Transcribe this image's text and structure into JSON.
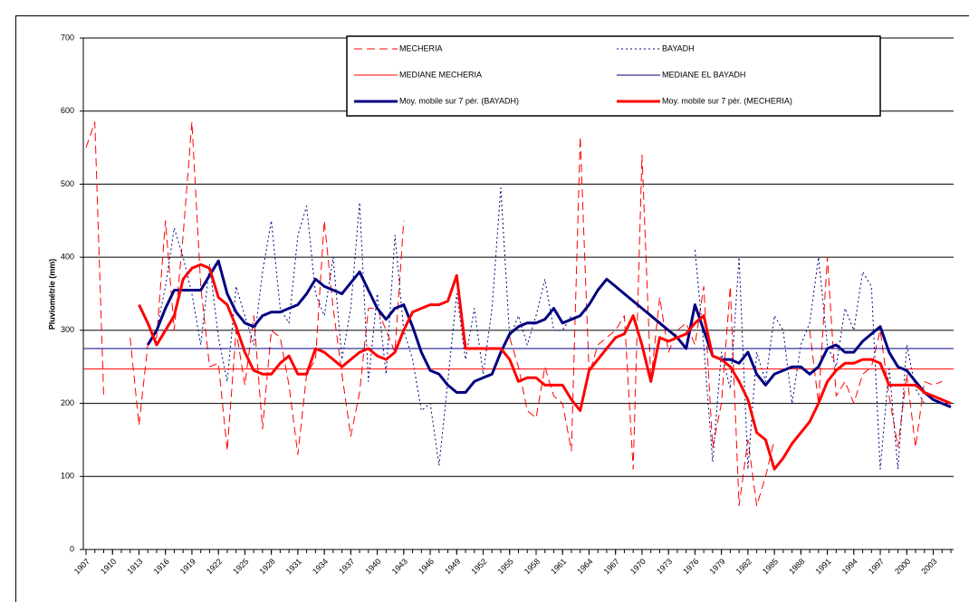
{
  "chart_data": {
    "type": "line",
    "ylabel": "Pluviométrie (mm)",
    "x": [
      1907,
      1908,
      1909,
      1910,
      1911,
      1912,
      1913,
      1914,
      1915,
      1916,
      1917,
      1918,
      1919,
      1920,
      1921,
      1922,
      1923,
      1924,
      1925,
      1926,
      1927,
      1928,
      1929,
      1930,
      1931,
      1932,
      1933,
      1934,
      1935,
      1936,
      1937,
      1938,
      1939,
      1940,
      1941,
      1942,
      1943,
      1944,
      1945,
      1946,
      1947,
      1948,
      1949,
      1950,
      1951,
      1952,
      1953,
      1954,
      1955,
      1956,
      1957,
      1958,
      1959,
      1960,
      1961,
      1962,
      1963,
      1964,
      1965,
      1966,
      1967,
      1968,
      1969,
      1970,
      1971,
      1972,
      1973,
      1974,
      1975,
      1976,
      1977,
      1978,
      1979,
      1980,
      1981,
      1982,
      1983,
      1984,
      1985,
      1986,
      1987,
      1988,
      1989,
      1990,
      1991,
      1992,
      1993,
      1994,
      1995,
      1996,
      1997,
      1998,
      1999,
      2000,
      2001,
      2002,
      2003,
      2004,
      2005
    ],
    "xlim": [
      1907,
      2005
    ],
    "xticks": [
      1907,
      1910,
      1913,
      1916,
      1919,
      1922,
      1925,
      1928,
      1931,
      1934,
      1937,
      1940,
      1943,
      1946,
      1949,
      1952,
      1955,
      1958,
      1961,
      1964,
      1967,
      1970,
      1973,
      1976,
      1979,
      1982,
      1985,
      1988,
      1991,
      1994,
      1997,
      2000,
      2003
    ],
    "ylim": [
      0,
      700
    ],
    "yticks": [
      0,
      100,
      200,
      300,
      400,
      500,
      600,
      700
    ],
    "grid": true,
    "legend": "top",
    "series": [
      {
        "name": "MECHERIA",
        "color": "#ff0000",
        "style": "dashed",
        "width": 1,
        "values": [
          550,
          585,
          210,
          null,
          null,
          290,
          170,
          280,
          290,
          450,
          300,
          430,
          585,
          360,
          250,
          255,
          135,
          300,
          225,
          320,
          165,
          300,
          290,
          225,
          130,
          240,
          260,
          450,
          330,
          240,
          155,
          215,
          330,
          330,
          300,
          270,
          450,
          null,
          null,
          null,
          null,
          null,
          null,
          150,
          null,
          null,
          null,
          null,
          290,
          250,
          190,
          180,
          250,
          210,
          200,
          135,
          565,
          240,
          280,
          290,
          300,
          320,
          110,
          540,
          230,
          345,
          270,
          300,
          310,
          280,
          360,
          140,
          200,
          360,
          60,
          150,
          60,
          100,
          150,
          null,
          null,
          null,
          300,
          200,
          400,
          210,
          230,
          200,
          240,
          250,
          300,
          210,
          140,
          240,
          140,
          230,
          225,
          230,
          null
        ]
      },
      {
        "name": "BAYADH",
        "color": "#000080",
        "style": "dotted",
        "width": 1,
        "values": [
          null,
          null,
          null,
          null,
          null,
          null,
          null,
          null,
          300,
          360,
          440,
          400,
          350,
          280,
          390,
          290,
          230,
          360,
          320,
          280,
          380,
          450,
          330,
          310,
          430,
          470,
          350,
          320,
          400,
          260,
          330,
          475,
          230,
          350,
          240,
          430,
          300,
          260,
          190,
          200,
          115,
          230,
          350,
          260,
          330,
          240,
          330,
          495,
          290,
          320,
          280,
          320,
          370,
          300,
          300,
          320,
          null,
          null,
          null,
          null,
          null,
          null,
          null,
          null,
          null,
          null,
          null,
          null,
          null,
          410,
          280,
          120,
          270,
          220,
          400,
          110,
          270,
          230,
          320,
          300,
          200,
          280,
          310,
          400,
          280,
          250,
          330,
          300,
          380,
          360,
          110,
          250,
          110,
          280,
          220,
          200,
          null,
          null,
          null
        ]
      },
      {
        "name": "MEDIANE MECHERIA",
        "color": "#ff0000",
        "style": "solid",
        "width": 1,
        "value": 247
      },
      {
        "name": "MEDIANE EL BAYADH",
        "color": "#000080",
        "style": "solid",
        "width": 1,
        "value": 275
      },
      {
        "name": "Moy. mobile sur 7 pér. (BAYADH)",
        "color": "#000080",
        "style": "solid",
        "width": 3,
        "values": [
          null,
          null,
          null,
          null,
          null,
          null,
          null,
          280,
          300,
          330,
          355,
          355,
          355,
          355,
          375,
          395,
          350,
          325,
          310,
          305,
          320,
          325,
          325,
          330,
          335,
          350,
          370,
          360,
          355,
          350,
          365,
          380,
          355,
          330,
          315,
          330,
          335,
          305,
          270,
          245,
          240,
          225,
          215,
          215,
          230,
          235,
          240,
          270,
          295,
          305,
          310,
          310,
          315,
          330,
          310,
          315,
          320,
          335,
          355,
          370,
          360,
          350,
          340,
          330,
          320,
          310,
          300,
          290,
          275,
          335,
          300,
          265,
          260,
          260,
          255,
          270,
          240,
          225,
          240,
          245,
          250,
          250,
          240,
          250,
          275,
          280,
          270,
          270,
          285,
          295,
          305,
          270,
          250,
          245,
          230,
          215,
          205,
          200,
          195
        ]
      },
      {
        "name": "Moy. mobile sur 7 pér. (MECHERIA)",
        "color": "#ff0000",
        "style": "solid",
        "width": 3,
        "values": [
          null,
          null,
          null,
          null,
          null,
          null,
          335,
          310,
          280,
          300,
          320,
          370,
          385,
          390,
          385,
          345,
          335,
          305,
          270,
          245,
          240,
          240,
          255,
          265,
          240,
          240,
          275,
          270,
          260,
          250,
          260,
          270,
          275,
          265,
          260,
          270,
          300,
          325,
          330,
          335,
          335,
          340,
          375,
          275,
          275,
          275,
          275,
          275,
          260,
          230,
          235,
          235,
          225,
          225,
          225,
          205,
          190,
          245,
          260,
          275,
          290,
          295,
          320,
          280,
          230,
          290,
          285,
          290,
          295,
          310,
          320,
          265,
          260,
          250,
          230,
          205,
          160,
          150,
          110,
          125,
          145,
          160,
          175,
          200,
          230,
          245,
          255,
          255,
          260,
          260,
          255,
          225,
          225,
          225,
          225,
          215,
          210,
          205,
          200
        ]
      }
    ]
  }
}
